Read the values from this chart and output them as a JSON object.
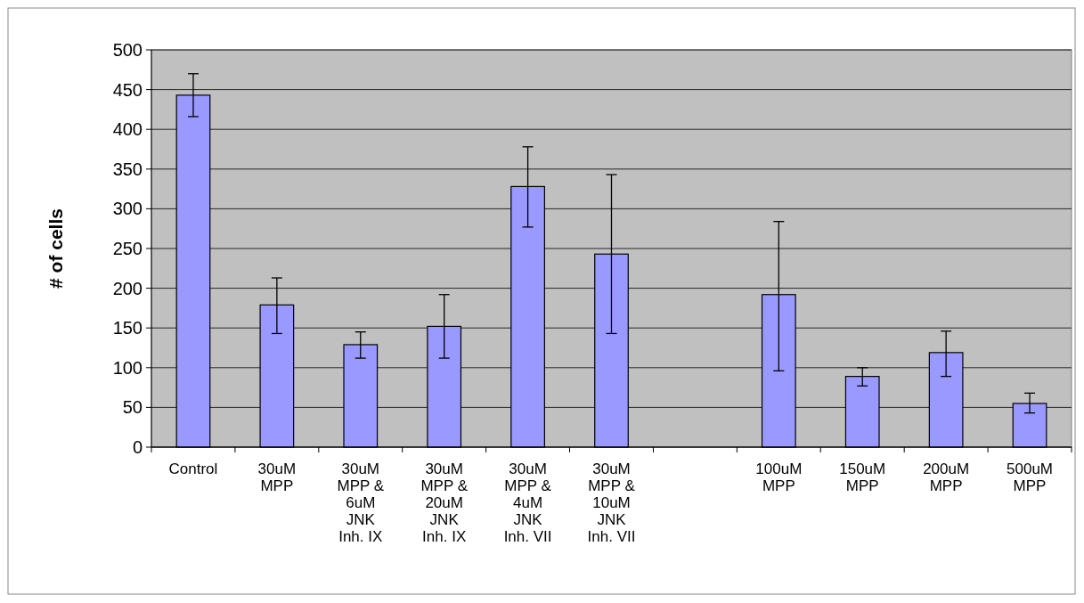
{
  "chart_data": {
    "type": "bar",
    "ylabel": "# of cells",
    "categories": [
      "Control",
      "30uM\nMPP",
      "30uM\nMPP &\n6uM\nJNK\nInh. IX",
      "30uM\nMPP &\n20uM\nJNK\nInh. IX",
      "30uM\nMPP &\n4uM\nJNK\nInh. VII",
      "30uM\nMPP &\n10uM\nJNK\nInh. VII",
      null,
      "100uM\nMPP",
      "150uM\nMPP",
      "200uM\nMPP",
      "500uM\nMPP"
    ],
    "values": [
      443,
      179,
      129,
      152,
      328,
      243,
      null,
      192,
      89,
      119,
      55
    ],
    "errors": [
      [
        416,
        470
      ],
      [
        143,
        213
      ],
      [
        112,
        145
      ],
      [
        112,
        192
      ],
      [
        277,
        378
      ],
      [
        143,
        343
      ],
      null,
      [
        96,
        284
      ],
      [
        77,
        100
      ],
      [
        89,
        146
      ],
      [
        43,
        68
      ]
    ],
    "color": "#9999ff",
    "ylim": [
      0,
      500
    ],
    "yticks": [
      0,
      50,
      100,
      150,
      200,
      250,
      300,
      350,
      400,
      450,
      500
    ],
    "grid": "y"
  }
}
